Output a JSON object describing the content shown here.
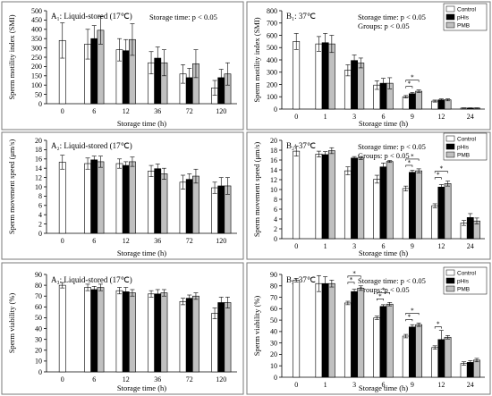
{
  "colors": {
    "Control": "#ffffff",
    "pHis": "#000000",
    "PMB": "#c0c0c0"
  },
  "chart_data": [
    {
      "id": "A1",
      "type": "bar",
      "title": "A₁: Liquid-stored (17℃)",
      "annotation": [
        "Storage time: p < 0.05"
      ],
      "ylabel": "Sperm motility index (SMI)",
      "xlabel": "Storage time (h)",
      "ylim": [
        0,
        500
      ],
      "yticks": [
        0,
        50,
        100,
        150,
        200,
        250,
        300,
        350,
        400,
        450,
        500
      ],
      "categories": [
        "0",
        "6",
        "12",
        "36",
        "72",
        "120"
      ],
      "series": [
        {
          "name": "Control",
          "values": [
            340,
            320,
            290,
            220,
            160,
            85
          ],
          "errors": [
            95,
            80,
            60,
            60,
            50,
            40
          ]
        },
        {
          "name": "pHis",
          "values": [
            null,
            350,
            285,
            245,
            140,
            140
          ],
          "errors": [
            null,
            70,
            60,
            60,
            50,
            45
          ]
        },
        {
          "name": "PMB",
          "values": [
            null,
            395,
            345,
            220,
            215,
            160
          ],
          "errors": [
            null,
            75,
            85,
            70,
            75,
            60
          ]
        }
      ],
      "significance": []
    },
    {
      "id": "B1",
      "type": "bar",
      "title": "B₁: 37℃",
      "annotation": [
        "Storage time: p < 0.05",
        "Groups: p < 0.05"
      ],
      "legend": [
        "Control",
        "pHis",
        "PMB"
      ],
      "ylabel": "Sperm motility index (SMI)",
      "xlabel": "Storage time (h)",
      "ylim": [
        0,
        800
      ],
      "yticks": [
        0,
        100,
        200,
        300,
        400,
        500,
        600,
        700,
        800
      ],
      "categories": [
        "0",
        "1",
        "3",
        "6",
        "9",
        "12",
        "24"
      ],
      "series": [
        {
          "name": "Control",
          "values": [
            550,
            530,
            315,
            195,
            100,
            65,
            8
          ],
          "errors": [
            65,
            60,
            45,
            35,
            10,
            8,
            2
          ]
        },
        {
          "name": "pHis",
          "values": [
            null,
            540,
            395,
            210,
            125,
            75,
            8
          ],
          "errors": [
            null,
            75,
            45,
            40,
            10,
            8,
            2
          ]
        },
        {
          "name": "PMB",
          "values": [
            null,
            530,
            375,
            210,
            145,
            75,
            8
          ],
          "errors": [
            null,
            70,
            40,
            45,
            10,
            8,
            2
          ]
        }
      ],
      "significance": [
        {
          "category": "9",
          "pairs": [
            [
              0,
              1
            ],
            [
              0,
              2
            ]
          ]
        }
      ]
    },
    {
      "id": "A2",
      "type": "bar",
      "title": "A₂: Liquid-stored (17℃)",
      "annotation": [],
      "ylabel": "Sperm movement speed (μm/s)",
      "xlabel": "Storage time (h)",
      "ylim": [
        0,
        20
      ],
      "yticks": [
        0,
        2,
        4,
        6,
        8,
        10,
        12,
        14,
        16,
        18,
        20
      ],
      "categories": [
        "0",
        "6",
        "12",
        "36",
        "72",
        "120"
      ],
      "series": [
        {
          "name": "Control",
          "values": [
            15.3,
            15.0,
            15.0,
            13.4,
            11.0,
            9.8
          ],
          "errors": [
            1.5,
            1.2,
            1.0,
            1.2,
            1.5,
            1.2
          ]
        },
        {
          "name": "pHis",
          "values": [
            null,
            15.8,
            14.6,
            13.9,
            11.6,
            10.2
          ],
          "errors": [
            null,
            0.8,
            0.8,
            1.0,
            1.2,
            1.8
          ]
        },
        {
          "name": "PMB",
          "values": [
            null,
            15.4,
            15.4,
            12.8,
            12.3,
            10.2
          ],
          "errors": [
            null,
            1.2,
            1.0,
            1.2,
            1.5,
            1.8
          ]
        }
      ],
      "significance": []
    },
    {
      "id": "B2",
      "type": "bar",
      "title": "B₂: 37℃",
      "annotation": [
        "Storage time: p < 0.05",
        "Groups: p < 0.05"
      ],
      "legend": [
        "Control",
        "pHis",
        "PMB"
      ],
      "ylabel": "Sperm movement speed (μm/s)",
      "xlabel": "Storage time (h)",
      "ylim": [
        0,
        20
      ],
      "yticks": [
        0,
        2,
        4,
        6,
        8,
        10,
        12,
        14,
        16,
        18,
        20
      ],
      "categories": [
        "0",
        "1",
        "3",
        "6",
        "9",
        "12",
        "24"
      ],
      "series": [
        {
          "name": "Control",
          "values": [
            17.8,
            17.2,
            13.8,
            12.1,
            10.2,
            6.7,
            3.2
          ],
          "errors": [
            1.0,
            0.6,
            0.8,
            0.8,
            0.5,
            0.4,
            0.5
          ]
        },
        {
          "name": "pHis",
          "values": [
            null,
            17.1,
            16.4,
            14.6,
            13.5,
            10.5,
            4.3
          ],
          "errors": [
            null,
            0.6,
            0.3,
            0.8,
            0.4,
            0.5,
            0.8
          ]
        },
        {
          "name": "PMB",
          "values": [
            null,
            17.9,
            16.4,
            15.7,
            13.8,
            11.2,
            3.6
          ],
          "errors": [
            null,
            0.6,
            0.3,
            0.2,
            0.4,
            0.5,
            0.6
          ]
        }
      ],
      "significance": [
        {
          "category": "9",
          "pairs": [
            [
              0,
              1
            ],
            [
              0,
              2
            ]
          ]
        },
        {
          "category": "12",
          "pairs": [
            [
              0,
              1
            ],
            [
              0,
              2
            ]
          ]
        }
      ]
    },
    {
      "id": "A3",
      "type": "bar",
      "title": "A₃: Liquid-stored (17℃)",
      "annotation": [],
      "ylabel": "Sperm viability (%)",
      "xlabel": "Storage time (h)",
      "ylim": [
        0,
        90
      ],
      "yticks": [
        0,
        10,
        20,
        30,
        40,
        50,
        60,
        70,
        80,
        90
      ],
      "categories": [
        "0",
        "6",
        "12",
        "36",
        "72",
        "120"
      ],
      "series": [
        {
          "name": "Control",
          "values": [
            80,
            78,
            75,
            72,
            65,
            54
          ],
          "errors": [
            2.5,
            3,
            3,
            3,
            3,
            5
          ]
        },
        {
          "name": "pHis",
          "values": [
            null,
            76,
            74,
            72,
            68,
            64
          ],
          "errors": [
            null,
            3,
            4,
            4,
            3,
            5
          ]
        },
        {
          "name": "PMB",
          "values": [
            null,
            78,
            73,
            73,
            70,
            64
          ],
          "errors": [
            null,
            3,
            3,
            3,
            3,
            5
          ]
        }
      ],
      "significance": []
    },
    {
      "id": "B3",
      "type": "bar",
      "title": "B₃: 37℃",
      "annotation": [
        "Storage time: p < 0.05",
        "Groups: p < 0.05"
      ],
      "legend": [
        "Control",
        "pHis",
        "PMB"
      ],
      "ylabel": "Sperm viability (%)",
      "xlabel": "Storage time (h)",
      "ylim": [
        0,
        90
      ],
      "yticks": [
        0,
        10,
        20,
        30,
        40,
        50,
        60,
        70,
        80,
        90
      ],
      "categories": [
        "0",
        "1",
        "3",
        "6",
        "9",
        "12",
        "24"
      ],
      "series": [
        {
          "name": "Control",
          "values": [
            85,
            82,
            65,
            52,
            36,
            26,
            12
          ],
          "errors": [
            1.5,
            7,
            1.5,
            1.5,
            1.5,
            1.5,
            1.5
          ]
        },
        {
          "name": "pHis",
          "values": [
            null,
            82,
            75,
            62,
            44,
            33,
            13
          ],
          "errors": [
            null,
            6,
            2,
            1.5,
            2,
            8,
            1.5
          ]
        },
        {
          "name": "PMB",
          "values": [
            null,
            82,
            78,
            64,
            46,
            35,
            15
          ],
          "errors": [
            null,
            3,
            2,
            1.5,
            1.5,
            1.5,
            1.5
          ]
        }
      ],
      "significance": [
        {
          "category": "3",
          "pairs": [
            [
              0,
              1
            ],
            [
              0,
              2
            ]
          ]
        },
        {
          "category": "6",
          "pairs": [
            [
              0,
              1
            ],
            [
              0,
              2
            ]
          ]
        },
        {
          "category": "9",
          "pairs": [
            [
              0,
              1
            ],
            [
              0,
              2
            ]
          ]
        },
        {
          "category": "12",
          "pairs": [
            [
              0,
              1
            ]
          ]
        }
      ]
    }
  ]
}
